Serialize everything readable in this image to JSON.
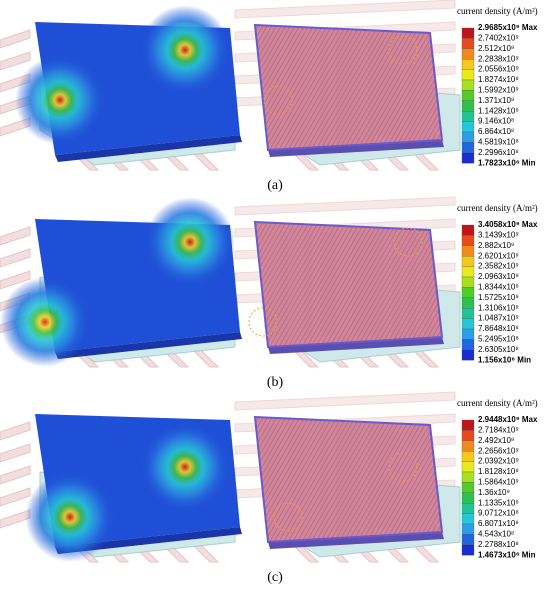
{
  "panels": [
    {
      "caption": "(a)",
      "legend": {
        "title": "current density (A/m²)",
        "labels": [
          "2.9685x10⁹ Max",
          "2.7402x10⁹",
          "2.512x10⁹",
          "2.2838x10⁹",
          "2.0556x10⁹",
          "1.8274x10⁹",
          "1.5992x10⁹",
          "1.371x10⁹",
          "1.1428x10⁹",
          "9.146x10⁸",
          "6.864x10⁸",
          "4.5819x10⁸",
          "2.2996x10⁸",
          "1.7823x10⁶ Min"
        ]
      }
    },
    {
      "caption": "(b)",
      "legend": {
        "title": "current density (A/m²)",
        "labels": [
          "3.4058x10⁹ Max",
          "3.1439x10⁹",
          "2.882x10⁹",
          "2.6201x10⁹",
          "2.3582x10⁹",
          "2.0963x10⁹",
          "1.8344x10⁹",
          "1.5725x10⁹",
          "1.3106x10⁹",
          "1.0487x10⁹",
          "7.8648x10⁸",
          "5.2495x10⁸",
          "2.6305x10⁸",
          "1.156x10⁶ Min"
        ]
      }
    },
    {
      "caption": "(c)",
      "legend": {
        "title": "current density (A/m²)",
        "labels": [
          "2.9448x10⁹ Max",
          "2.7184x10⁹",
          "2.492x10⁹",
          "2.2656x10⁹",
          "2.0392x10⁹",
          "1.8128x10⁹",
          "1.5864x10⁹",
          "1.36x10⁹",
          "1.1335x10⁹",
          "9.0712x10⁸",
          "6.8071x10⁸",
          "4.543x10⁸",
          "2.2788x10⁸",
          "1.4673x10⁶ Min"
        ]
      }
    }
  ]
}
